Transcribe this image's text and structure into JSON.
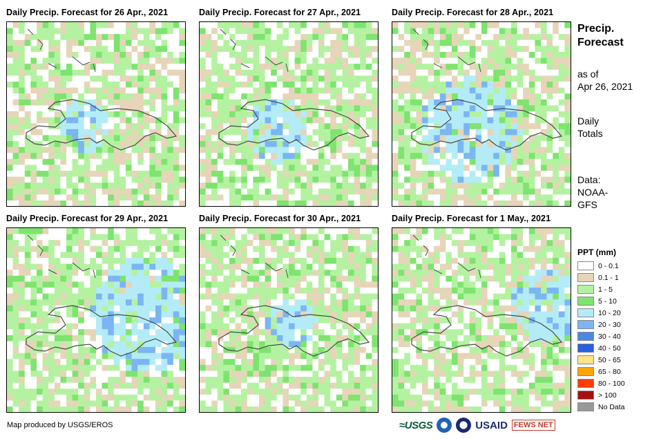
{
  "panels": [
    {
      "title": "Daily Precip. Forecast for 26 Apr., 2021",
      "wet": 0.25,
      "heavy": 0.02,
      "blue_pos": [
        0.42,
        0.55
      ]
    },
    {
      "title": "Daily Precip. Forecast for 27 Apr., 2021",
      "wet": 0.45,
      "heavy": 0.03,
      "blue_pos": [
        0.42,
        0.57
      ]
    },
    {
      "title": "Daily Precip. Forecast for 28 Apr., 2021",
      "wet": 0.3,
      "heavy": 0.08,
      "blue_pos": [
        0.42,
        0.57
      ]
    },
    {
      "title": "Daily Precip. Forecast for 29 Apr., 2021",
      "wet": 0.55,
      "heavy": 0.1,
      "blue_pos": [
        0.78,
        0.45
      ]
    },
    {
      "title": "Daily Precip. Forecast for 30 Apr., 2021",
      "wet": 0.5,
      "heavy": 0.02,
      "blue_pos": [
        0.5,
        0.5
      ]
    },
    {
      "title": "Daily Precip. Forecast for 1 May., 2021",
      "wet": 0.4,
      "heavy": 0.04,
      "blue_pos": [
        0.85,
        0.4
      ]
    }
  ],
  "side": {
    "heading_line1": "Precip.",
    "heading_line2": "Forecast",
    "asof_line1": "as of",
    "asof_line2": "Apr 26, 2021",
    "daily_line1": "Daily",
    "daily_line2": "Totals",
    "data_line1": "Data:",
    "data_line2": "NOAA-",
    "data_line3": "GFS"
  },
  "legend": {
    "title": "PPT (mm)",
    "items": [
      {
        "label": "0 - 0.1",
        "color": "#ffffff"
      },
      {
        "label": "0.1 - 1",
        "color": "#e6d5b8"
      },
      {
        "label": "1 - 5",
        "color": "#b4f2a1"
      },
      {
        "label": "5 - 10",
        "color": "#7ee46f"
      },
      {
        "label": "10 - 20",
        "color": "#b3ecf7"
      },
      {
        "label": "20 - 30",
        "color": "#7bb6f2"
      },
      {
        "label": "30 - 40",
        "color": "#4a88e8"
      },
      {
        "label": "40 - 50",
        "color": "#2a5fe0"
      },
      {
        "label": "50 - 65",
        "color": "#ffe487"
      },
      {
        "label": "65 - 80",
        "color": "#ffa500"
      },
      {
        "label": "80 - 100",
        "color": "#ff3b00"
      },
      {
        "label": "> 100",
        "color": "#a51010"
      },
      {
        "label": "No Data",
        "color": "#999999"
      }
    ]
  },
  "credit": "Map produced by USGS/EROS",
  "logos": {
    "usgs": "≈USGS",
    "usaid": "USAID",
    "fews": "FEWS NET"
  }
}
